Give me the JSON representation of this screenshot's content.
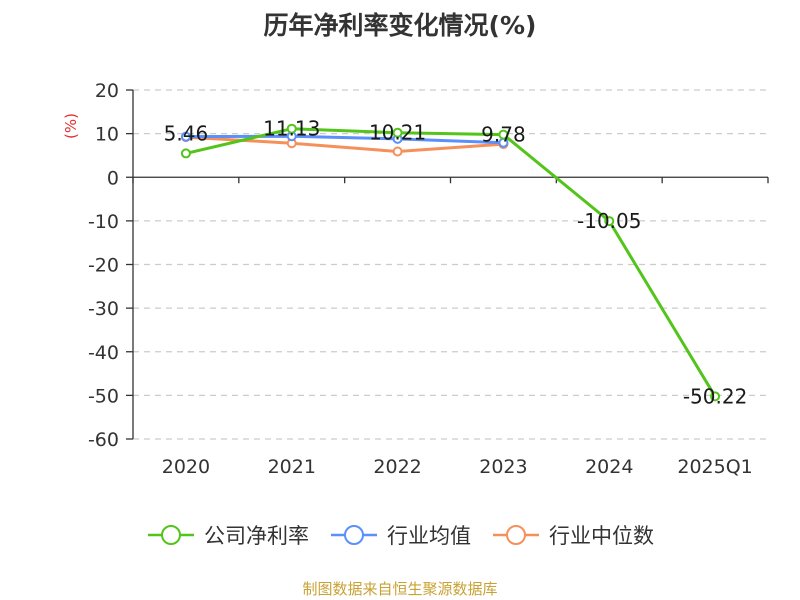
{
  "title": "历年净利率变化情况(%)",
  "unit": "(%)",
  "source": "制图数据来自恒生聚源数据库",
  "colors": {
    "company": "#52c41a",
    "industry_avg": "#5b8ff9",
    "industry_median": "#f6905a",
    "grid": "#cccccc",
    "axis": "#333333"
  },
  "chart_data": {
    "type": "line",
    "title": "历年净利率变化情况(%)",
    "ylabel": "(%)",
    "categories": [
      "2020",
      "2021",
      "2022",
      "2023",
      "2024",
      "2025Q1"
    ],
    "ylim": [
      -60,
      20
    ],
    "yticks": [
      20,
      10,
      0,
      -10,
      -20,
      -30,
      -40,
      -50,
      -60
    ],
    "grid": true,
    "legend_position": "bottom",
    "series": [
      {
        "name": "公司净利率",
        "color": "#52c41a",
        "values": [
          5.46,
          11.13,
          10.21,
          9.78,
          -10.05,
          -50.22
        ],
        "labels": [
          "5.46",
          "11.13",
          "10.21",
          "9.78",
          "-10.05",
          "-50.22"
        ]
      },
      {
        "name": "行业均值",
        "color": "#5b8ff9",
        "values": [
          9.3,
          9.4,
          8.8,
          7.9,
          null,
          null
        ]
      },
      {
        "name": "行业中位数",
        "color": "#f6905a",
        "values": [
          9.2,
          7.8,
          5.9,
          7.6,
          null,
          null
        ]
      }
    ]
  },
  "legend": [
    {
      "label": "公司净利率",
      "color": "#52c41a"
    },
    {
      "label": "行业均值",
      "color": "#5b8ff9"
    },
    {
      "label": "行业中位数",
      "color": "#f6905a"
    }
  ]
}
